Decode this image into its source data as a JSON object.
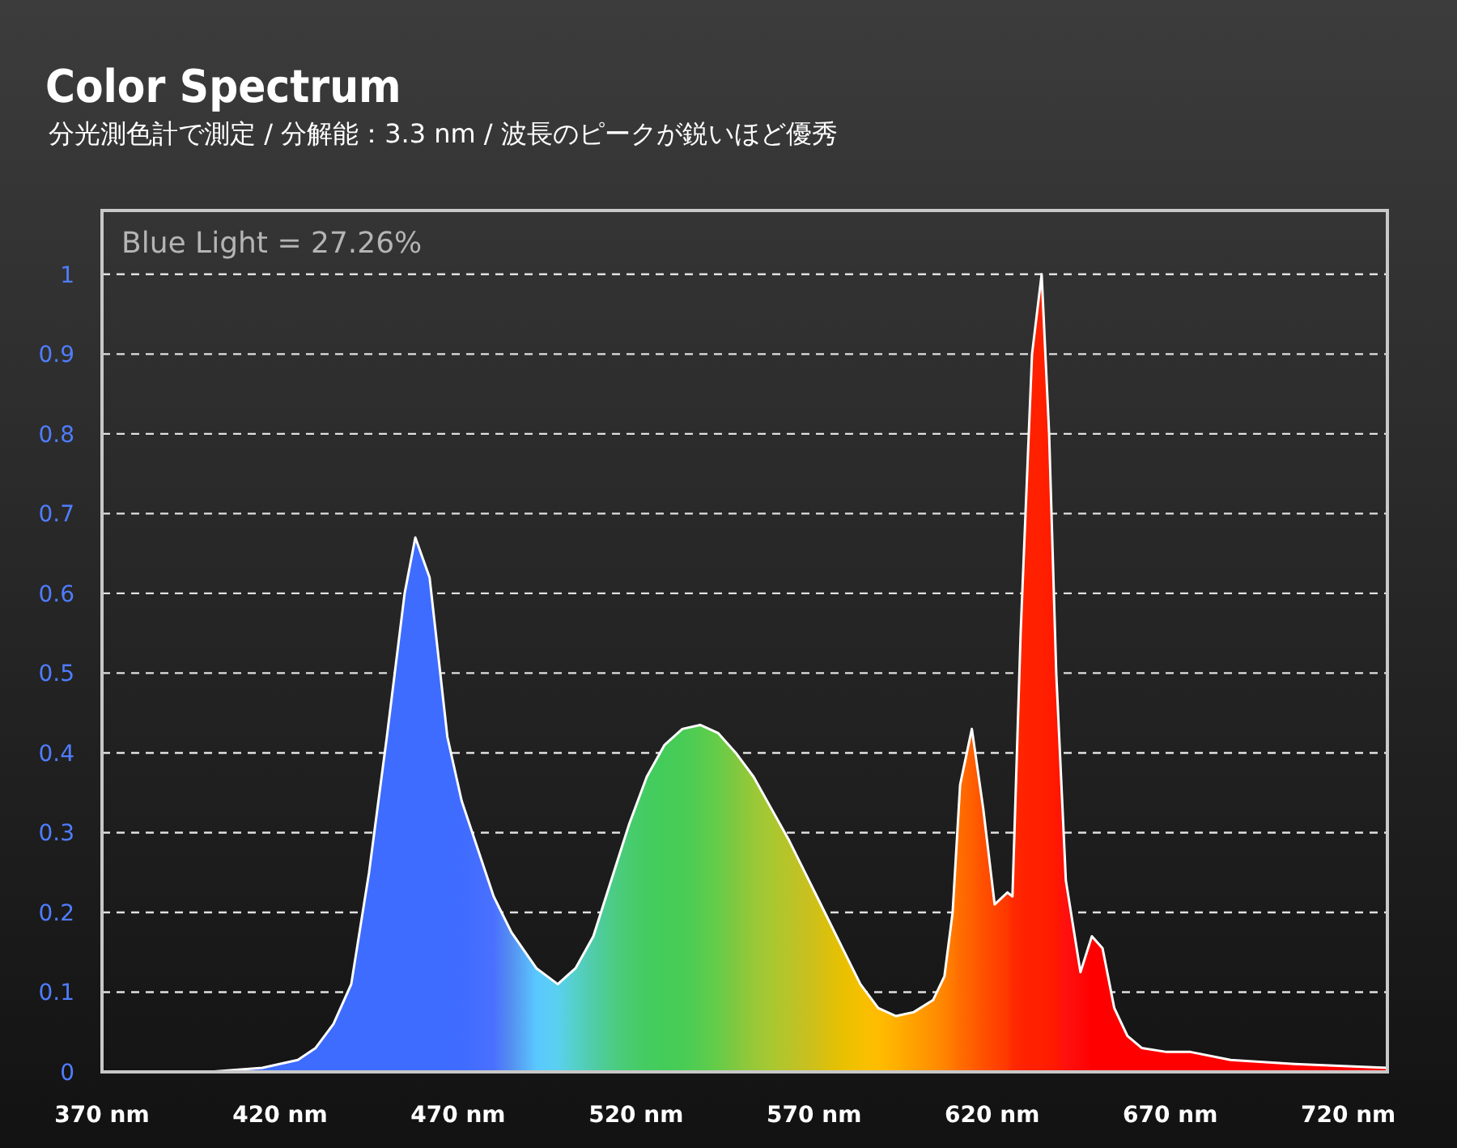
{
  "chart_data": {
    "type": "area",
    "title": "Color Spectrum",
    "subtitle": "分光測色計で測定 / 分解能：3.3 nm / 波長のピークが鋭いほど優秀",
    "annotations": [
      "Blue Light = 27.26%"
    ],
    "xlim": [
      370,
      731
    ],
    "ylim": [
      0,
      1.08
    ],
    "xticks": [
      {
        "value": 370,
        "label": "370 nm"
      },
      {
        "value": 420,
        "label": "420 nm"
      },
      {
        "value": 470,
        "label": "470 nm"
      },
      {
        "value": 520,
        "label": "520 nm"
      },
      {
        "value": 570,
        "label": "570 nm"
      },
      {
        "value": 620,
        "label": "620 nm"
      },
      {
        "value": 670,
        "label": "670 nm"
      },
      {
        "value": 720,
        "label": "720 nm"
      }
    ],
    "yticks": [
      0,
      0.1,
      0.2,
      0.3,
      0.4,
      0.5,
      0.6,
      0.7,
      0.8,
      0.9,
      1
    ],
    "grid": "y",
    "series": [
      {
        "color": "#ffffff",
        "x": [
          370,
          400,
          415,
          425,
          430,
          435,
          440,
          445,
          450,
          455,
          458,
          462,
          467,
          471,
          480,
          485,
          492,
          498,
          503,
          508,
          513,
          518,
          523,
          528,
          533,
          538,
          543,
          548,
          553,
          558,
          563,
          568,
          573,
          578,
          583,
          588,
          593,
          598,
          603.4,
          606.6,
          608.9,
          611,
          614.3,
          617.5,
          620.7,
          624.3,
          625.7,
          628,
          631.2,
          633.9,
          636,
          638,
          640.7,
          644.8,
          648,
          651,
          654.3,
          658,
          662,
          669,
          675.7,
          687,
          705,
          731
        ],
        "values": [
          0,
          0,
          0.005,
          0.015,
          0.03,
          0.06,
          0.11,
          0.25,
          0.42,
          0.6,
          0.67,
          0.62,
          0.42,
          0.34,
          0.22,
          0.175,
          0.13,
          0.11,
          0.13,
          0.17,
          0.24,
          0.31,
          0.37,
          0.41,
          0.43,
          0.435,
          0.425,
          0.4,
          0.37,
          0.33,
          0.29,
          0.245,
          0.2,
          0.155,
          0.11,
          0.08,
          0.07,
          0.075,
          0.09,
          0.12,
          0.2,
          0.36,
          0.43,
          0.33,
          0.21,
          0.225,
          0.22,
          0.55,
          0.9,
          1,
          0.8,
          0.5,
          0.24,
          0.125,
          0.17,
          0.155,
          0.08,
          0.045,
          0.03,
          0.025,
          0.025,
          0.015,
          0.01,
          0.005
        ],
        "colors": [
          "#3d6cff",
          "#3d6cff",
          "#3d6cff",
          "#3d6cff",
          "#3d6cff",
          "#3d6cff",
          "#3d6cff",
          "#3d6cff",
          "#3d6cff",
          "#3d6cff",
          "#3d6cff",
          "#3d6cff",
          "#3d6cff",
          "#3f6cff",
          "#4a70ff",
          "#5590f0",
          "#5ac8ff",
          "#5ad0f0",
          "#55d0c8",
          "#50cca8",
          "#4ccc88",
          "#48cc70",
          "#44cc60",
          "#44cc5a",
          "#48cc55",
          "#55cc50",
          "#66cc48",
          "#80c840",
          "#98c838",
          "#a8c830",
          "#b8c428",
          "#c8c020",
          "#d8c010",
          "#e8c000",
          "#f5c000",
          "#ffbc00",
          "#ffb000",
          "#ffa000",
          "#ff9000",
          "#ff8400",
          "#ff7800",
          "#ff6c00",
          "#ff6000",
          "#ff5000",
          "#ff4400",
          "#ff3800",
          "#ff2a00",
          "#ff2400",
          "#ff2000",
          "#ff2000",
          "#ff1c00",
          "#ff1800",
          "#ff1010",
          "#ff0808",
          "#ff0000",
          "#ff0000",
          "#ff0000",
          "#ff0000",
          "#ff0000",
          "#ff0000",
          "#ff0000",
          "#ff0000",
          "#ff0000",
          "#ff0000"
        ]
      }
    ]
  }
}
